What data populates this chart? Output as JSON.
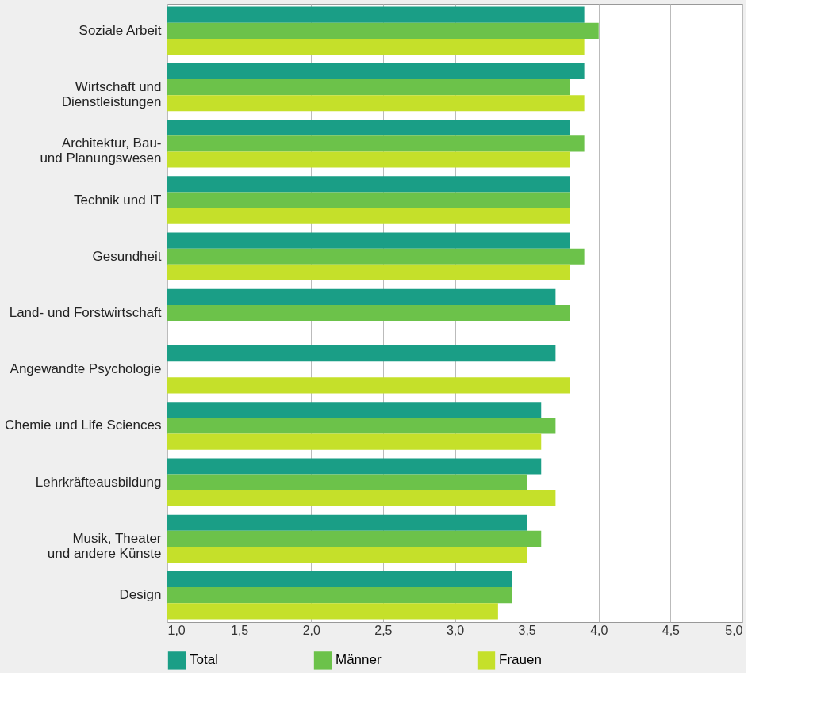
{
  "chart_data": {
    "type": "bar",
    "orientation": "horizontal",
    "categories": [
      "Soziale Arbeit",
      "Wirtschaft und\nDienstleistungen",
      "Architektur, Bau-\nund Planungswesen",
      "Technik und IT",
      "Gesundheit",
      "Land- und Forstwirtschaft",
      "Angewandte Psychologie",
      "Chemie und Life Sciences",
      "Lehrkräfteausbildung",
      "Musik, Theater\nund andere Künste",
      "Design"
    ],
    "series": [
      {
        "name": "Total",
        "color": "#1a9e86",
        "values": [
          3.9,
          3.9,
          3.8,
          3.8,
          3.8,
          3.7,
          3.7,
          3.6,
          3.6,
          3.5,
          3.4
        ]
      },
      {
        "name": "Männer",
        "color": "#6cc24a",
        "values": [
          4.0,
          3.8,
          3.9,
          3.8,
          3.9,
          3.8,
          null,
          3.7,
          3.5,
          3.6,
          3.4
        ]
      },
      {
        "name": "Frauen",
        "color": "#c5e02a",
        "values": [
          3.9,
          3.9,
          3.8,
          3.8,
          3.8,
          null,
          3.8,
          3.6,
          3.7,
          3.5,
          3.3
        ]
      }
    ],
    "xlim": [
      1,
      5
    ],
    "xticks": [
      {
        "value": 1,
        "label": "1,0"
      },
      {
        "value": 1.5,
        "label": "1,5"
      },
      {
        "value": 2,
        "label": "2,0"
      },
      {
        "value": 2.5,
        "label": "2,5"
      },
      {
        "value": 3,
        "label": "3,0"
      },
      {
        "value": 3.5,
        "label": "3,5"
      },
      {
        "value": 4,
        "label": "4,0"
      },
      {
        "value": 4.5,
        "label": "4,5"
      },
      {
        "value": 5,
        "label": "5,0"
      }
    ],
    "grid": "x",
    "legend": "bottom"
  }
}
